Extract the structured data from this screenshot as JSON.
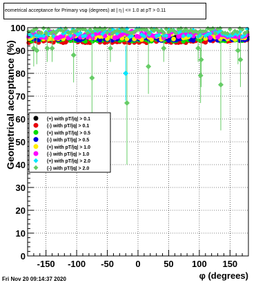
{
  "chart_data": {
    "type": "scatter",
    "title": "eometrical acceptance for Primary vsφ (degrees) at | η | <= 1.0 at pT > 0.11",
    "xlabel": "φ (degrees)",
    "ylabel": "Geometrical acceptance (%)",
    "xlim": [
      -180,
      180
    ],
    "ylim": [
      0,
      100
    ],
    "xticks": [
      -150,
      -100,
      -50,
      0,
      50,
      100,
      150
    ],
    "yticks": [
      0,
      10,
      20,
      30,
      40,
      50,
      60,
      70,
      80,
      90,
      100
    ],
    "grid": true,
    "legend_position": "center-left",
    "series": [
      {
        "name": "(+) with pT/|q| > 0.1",
        "color": "#000000",
        "marker": "circle",
        "base": 95.2,
        "spread": 0.8
      },
      {
        "name": "(-) with pT/|q| > 0.1",
        "color": "#e8000b",
        "marker": "circle",
        "base": 94.2,
        "spread": 0.8
      },
      {
        "name": "(+) with pT/|q| > 0.5",
        "color": "#00dd00",
        "marker": "circle",
        "base": 95.0,
        "spread": 1.0
      },
      {
        "name": "(-) with pT/|q| > 0.5",
        "color": "#0000dd",
        "marker": "circle",
        "base": 95.4,
        "spread": 1.0
      },
      {
        "name": "(+) with pT/|q| > 1.0",
        "color": "#ffee00",
        "marker": "circle",
        "base": 96.3,
        "spread": 1.5
      },
      {
        "name": "(-) with pT/|q| > 1.0",
        "color": "#ff00ff",
        "marker": "circle",
        "base": 97.0,
        "spread": 1.5
      },
      {
        "name": "(+) with pT/|q| > 2.0",
        "color": "#00e6ff",
        "marker": "diamond",
        "base": 97.8,
        "spread": 1.8
      },
      {
        "name": "(-) with pT/|q| > 2.0",
        "color": "#66cc66",
        "marker": "diamond",
        "base": 98.6,
        "spread": 1.2
      }
    ],
    "outliers": [
      {
        "series": 7,
        "x": -170,
        "y": 91,
        "err": 8
      },
      {
        "series": 7,
        "x": -165,
        "y": 90,
        "err": 6
      },
      {
        "series": 7,
        "x": -148,
        "y": 91,
        "err": 6
      },
      {
        "series": 7,
        "x": -140,
        "y": 91,
        "err": 6
      },
      {
        "series": 7,
        "x": -105,
        "y": 88,
        "err": 12
      },
      {
        "series": 7,
        "x": -75,
        "y": 78,
        "err": 18
      },
      {
        "series": 7,
        "x": -45,
        "y": 91,
        "err": 6
      },
      {
        "series": 7,
        "x": -18,
        "y": 67,
        "err": 27
      },
      {
        "series": 6,
        "x": -20,
        "y": 80,
        "err": 12
      },
      {
        "series": 7,
        "x": 17,
        "y": 83,
        "err": 12
      },
      {
        "series": 7,
        "x": 42,
        "y": 91,
        "err": 6
      },
      {
        "series": 7,
        "x": 98,
        "y": 91,
        "err": 6
      },
      {
        "series": 7,
        "x": 103,
        "y": 86,
        "err": 12
      },
      {
        "series": 7,
        "x": 102,
        "y": 79,
        "err": 12
      },
      {
        "series": 7,
        "x": 135,
        "y": 75,
        "err": 20
      },
      {
        "series": 7,
        "x": 163,
        "y": 90,
        "err": 6
      },
      {
        "series": 7,
        "x": 167,
        "y": 86,
        "err": 12
      }
    ]
  },
  "footer": {
    "timestamp": "Fri Nov 20 09:14:37 2020"
  }
}
